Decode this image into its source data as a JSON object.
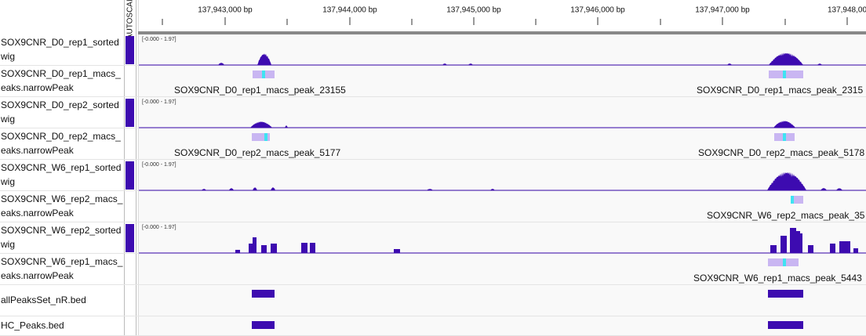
{
  "ruler": {
    "autoscale": "AUTOSCALE",
    "ticks": [
      "137,943,000 bp",
      "137,944,000 bp",
      "137,945,000 bp",
      "137,946,000 bp",
      "137,947,000 bp",
      "137,948,00"
    ]
  },
  "tracks": [
    {
      "kind": "wig",
      "name": [
        "SOX9CNR_D0_rep1_sorted",
        "wig"
      ],
      "range": "[-0.000 - 1.97]"
    },
    {
      "kind": "peak",
      "name": [
        "SOX9CNR_D0_rep1_macs_",
        "eaks.narrowPeak"
      ],
      "labels": [
        "SOX9CNR_D0_rep1_macs_peak_23155",
        "SOX9CNR_D0_rep1_macs_peak_2315"
      ]
    },
    {
      "kind": "wig",
      "name": [
        "SOX9CNR_D0_rep2_sorted",
        "wig"
      ],
      "range": "[-0.000 - 1.97]"
    },
    {
      "kind": "peak",
      "name": [
        "SOX9CNR_D0_rep2_macs_",
        "eaks.narrowPeak"
      ],
      "labels": [
        "SOX9CNR_D0_rep2_macs_peak_5177",
        "SOX9CNR_D0_rep2_macs_peak_5178"
      ]
    },
    {
      "kind": "wig",
      "name": [
        "SOX9CNR_W6_rep1_sorted",
        "wig"
      ],
      "range": "[-0.000 - 1.97]"
    },
    {
      "kind": "peak",
      "name": [
        "SOX9CNR_W6_rep2_macs_",
        "eaks.narrowPeak"
      ],
      "labels": [
        "SOX9CNR_W6_rep2_macs_peak_35"
      ]
    },
    {
      "kind": "wig",
      "name": [
        "SOX9CNR_W6_rep2_sorted",
        "wig"
      ],
      "range": "[-0.000 - 1.97]"
    },
    {
      "kind": "peak",
      "name": [
        "SOX9CNR_W6_rep1_macs_",
        "eaks.narrowPeak"
      ],
      "labels": [
        "SOX9CNR_W6_rep1_macs_peak_5443"
      ]
    },
    {
      "kind": "bed",
      "name": [
        "allPeaksSet_nR.bed"
      ]
    },
    {
      "kind": "bed",
      "name": [
        "HC_Peaks.bed"
      ]
    }
  ]
}
